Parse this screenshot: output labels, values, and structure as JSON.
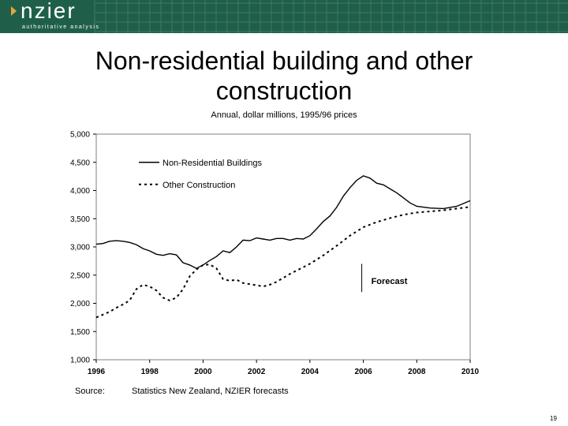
{
  "header": {
    "brand": "nzier",
    "tagline": "authoritative analysis"
  },
  "title_line1": "Non-residential building and other",
  "title_line2": "construction",
  "chart_data": {
    "type": "line",
    "title": "Non-residential building and other construction",
    "subtitle": "Annual, dollar millions, 1995/96 prices",
    "xlim": [
      1996,
      2010
    ],
    "ylim": [
      1000,
      5000
    ],
    "xticks": [
      1996,
      1998,
      2000,
      2002,
      2004,
      2006,
      2008,
      2010
    ],
    "yticks": [
      1000,
      1500,
      2000,
      2500,
      3000,
      3500,
      4000,
      4500,
      5000
    ],
    "ytick_labels": [
      "1,000",
      "1,500",
      "2,000",
      "2,500",
      "3,000",
      "3,500",
      "4,000",
      "4,500",
      "5,000"
    ],
    "legend_placement": "top-left",
    "annotation": "Forecast",
    "forecast_start": 2006,
    "series": [
      {
        "name": "Non-Residential Buildings",
        "style": "solid",
        "x": [
          1996,
          1996.25,
          1996.5,
          1996.75,
          1997,
          1997.25,
          1997.5,
          1997.75,
          1998,
          1998.25,
          1998.5,
          1998.75,
          1999,
          1999.25,
          1999.5,
          1999.75,
          2000,
          2000.25,
          2000.5,
          2000.75,
          2001,
          2001.25,
          2001.5,
          2001.75,
          2002,
          2002.25,
          2002.5,
          2002.75,
          2003,
          2003.25,
          2003.5,
          2003.75,
          2004,
          2004.25,
          2004.5,
          2004.75,
          2005,
          2005.25,
          2005.5,
          2005.75,
          2006,
          2006.25,
          2006.5,
          2006.75,
          2007,
          2007.25,
          2007.5,
          2007.75,
          2008,
          2008.5,
          2009,
          2009.5,
          2010
        ],
        "values": [
          3050,
          3060,
          3100,
          3110,
          3100,
          3080,
          3040,
          2970,
          2930,
          2870,
          2850,
          2880,
          2860,
          2720,
          2680,
          2620,
          2680,
          2760,
          2830,
          2930,
          2900,
          3000,
          3120,
          3110,
          3160,
          3140,
          3120,
          3150,
          3150,
          3120,
          3150,
          3140,
          3200,
          3320,
          3450,
          3550,
          3700,
          3900,
          4050,
          4180,
          4260,
          4220,
          4130,
          4100,
          4030,
          3960,
          3870,
          3780,
          3720,
          3690,
          3680,
          3720,
          3820
        ]
      },
      {
        "name": "Other Construction",
        "style": "dotted",
        "x": [
          1996,
          1996.25,
          1996.5,
          1996.75,
          1997,
          1997.25,
          1997.5,
          1997.75,
          1998,
          1998.25,
          1998.5,
          1998.75,
          1999,
          1999.25,
          1999.5,
          1999.75,
          2000,
          2000.25,
          2000.5,
          2000.75,
          2001,
          2001.25,
          2001.5,
          2001.75,
          2002,
          2002.25,
          2002.5,
          2002.75,
          2003,
          2003.25,
          2003.5,
          2003.75,
          2004,
          2004.5,
          2005,
          2005.5,
          2006,
          2006.5,
          2007,
          2007.5,
          2008,
          2008.5,
          2009,
          2009.5,
          2010
        ],
        "values": [
          1750,
          1800,
          1850,
          1920,
          1980,
          2050,
          2250,
          2330,
          2300,
          2230,
          2100,
          2050,
          2100,
          2250,
          2480,
          2600,
          2680,
          2690,
          2620,
          2430,
          2400,
          2420,
          2360,
          2340,
          2320,
          2300,
          2330,
          2380,
          2450,
          2520,
          2580,
          2640,
          2700,
          2850,
          3020,
          3200,
          3350,
          3440,
          3510,
          3570,
          3610,
          3630,
          3650,
          3680,
          3710
        ]
      }
    ]
  },
  "source_label": "Source:",
  "source_text": "Statistics New Zealand, NZIER forecasts",
  "page_number": "19",
  "colors": {
    "header_bg": "#1f5f4a",
    "logo_accent": "#e3a53b",
    "plot_bg": "#ffffff",
    "line": "#000000"
  }
}
